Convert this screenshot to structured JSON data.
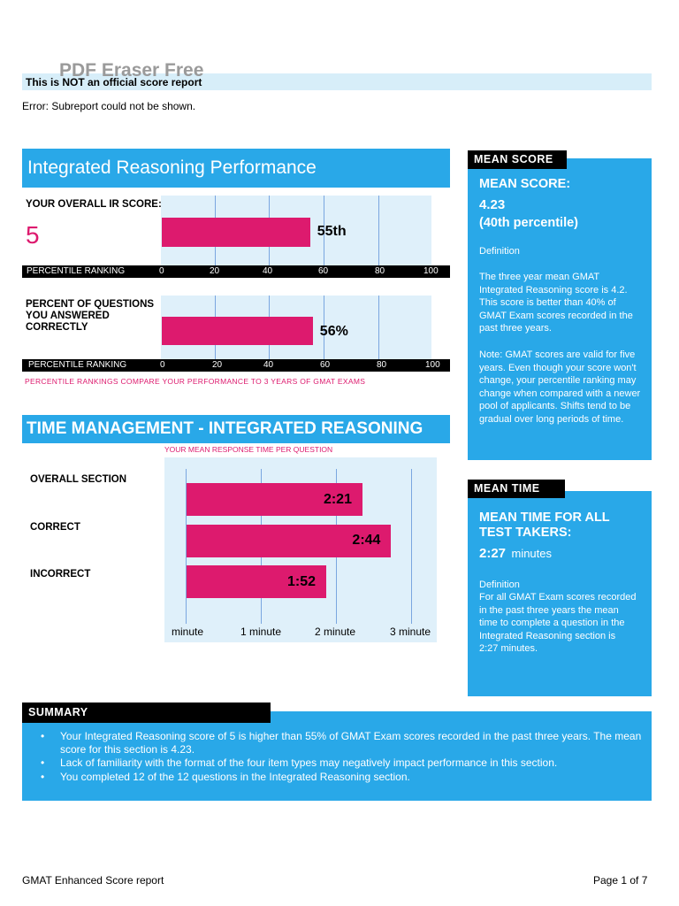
{
  "header": {
    "watermark": "PDF Eraser Free",
    "notice": "This is NOT an official score report",
    "error": "Error: Subreport could not be shown."
  },
  "ir_performance": {
    "title": "Integrated Reasoning Performance",
    "overall_label": "YOUR OVERALL IR SCORE:",
    "overall_score": "5",
    "percentile_label": "PERCENTILE RANKING",
    "ticks": [
      "0",
      "20",
      "40",
      "60",
      "80",
      "100"
    ],
    "score_bar": {
      "value": 55,
      "label": "55th"
    },
    "correct_label": "PERCENT OF QUESTIONS YOU ANSWERED CORRECTLY",
    "correct_bar": {
      "value": 56,
      "label": "56%"
    },
    "note": "PERCENTILE RANKINGS COMPARE YOUR PERFORMANCE TO 3 YEARS OF GMAT EXAMS"
  },
  "time_management": {
    "title": "TIME MANAGEMENT - INTEGRATED REASONING",
    "subtitle": "YOUR MEAN RESPONSE TIME PER QUESTION",
    "rows": [
      {
        "label": "OVERALL SECTION",
        "value": "2:21",
        "seconds": 141
      },
      {
        "label": "CORRECT",
        "value": "2:44",
        "seconds": 164
      },
      {
        "label": "INCORRECT",
        "value": "1:52",
        "seconds": 112
      }
    ],
    "ticks": [
      "minute",
      "1 minute",
      "2 minute",
      "3 minute"
    ]
  },
  "mean_score": {
    "tag": "MEAN SCORE",
    "heading": "MEAN SCORE:",
    "value": "4.23",
    "percentile": "(40th percentile)",
    "definition_label": "Definition",
    "definition": "The three year mean GMAT Integrated Reasoning score is 4.2. This score is better than 40% of GMAT Exam scores recorded in the past three years.",
    "note": "Note: GMAT scores are valid for five years. Even though your score won't change, your percentile ranking may change when compared with a newer pool of applicants. Shifts tend to be gradual over long periods of time."
  },
  "mean_time": {
    "tag": "MEAN TIME",
    "heading": "MEAN TIME FOR ALL TEST TAKERS:",
    "value": "2:27",
    "unit": "minutes",
    "definition_label": "Definition",
    "definition": "For all GMAT Exam scores recorded in the past three years the mean time to complete a question in the Integrated Reasoning section is 2:27 minutes."
  },
  "summary": {
    "tag": "SUMMARY",
    "bullets": [
      "Your Integrated Reasoning score of 5 is higher than 55% of GMAT Exam scores recorded in the past three years. The mean score for this section is 4.23.",
      "Lack of familiarity with the format of the four item types may negatively impact performance in this section.",
      "You completed 12 of the 12 questions in the Integrated Reasoning section."
    ]
  },
  "footer": {
    "left": "GMAT Enhanced Score report",
    "right": "Page 1 of 7"
  },
  "colors": {
    "accent_blue": "#29a8e8",
    "bar_pink": "#dd1a6e",
    "light_blue": "#d7eef9"
  }
}
